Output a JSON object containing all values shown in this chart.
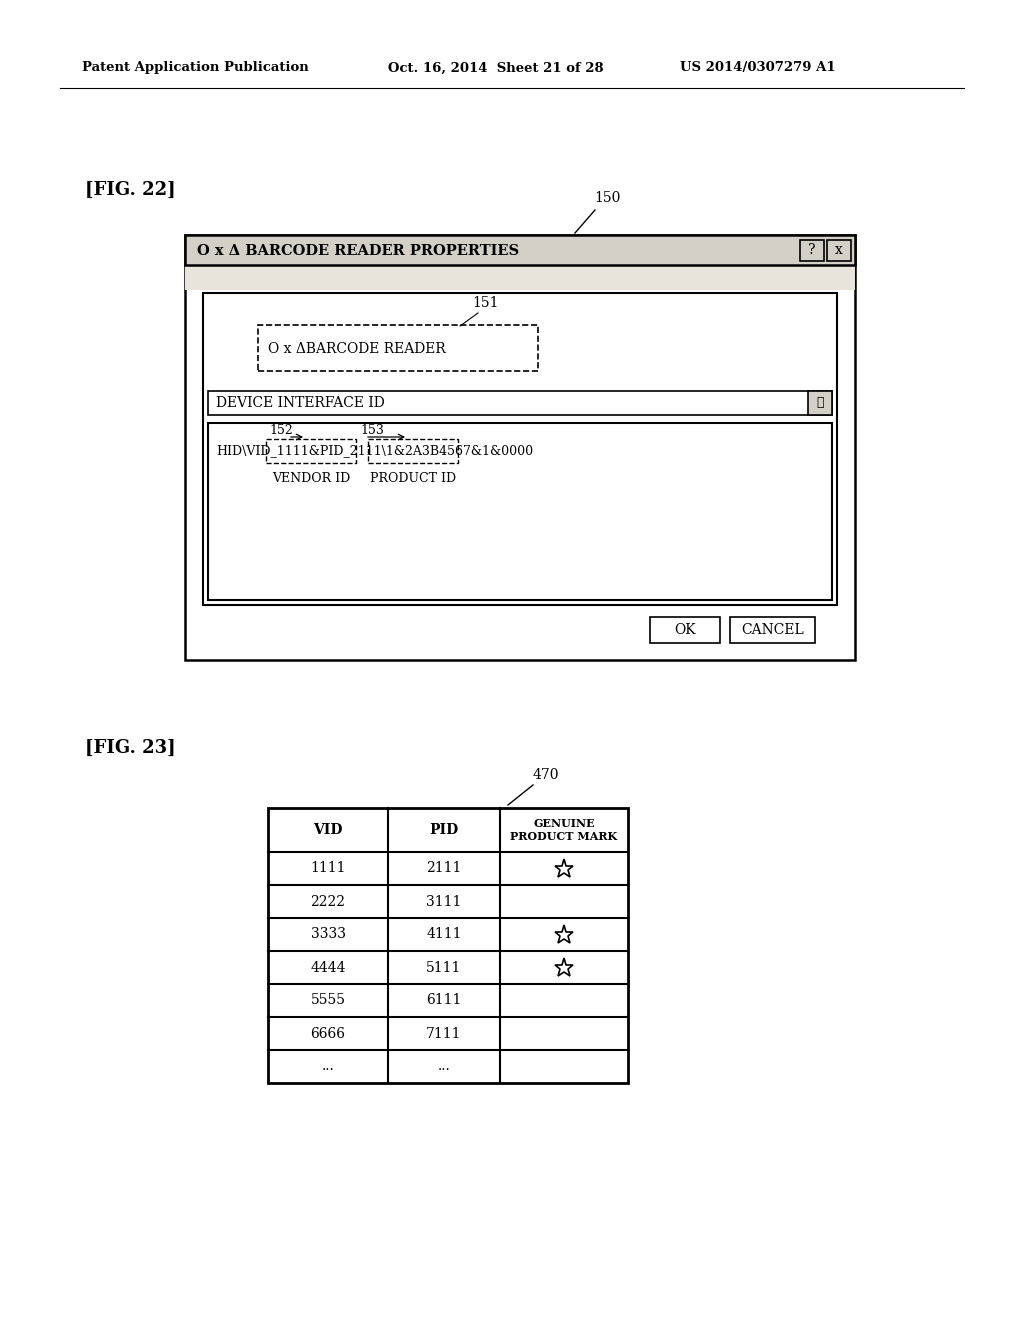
{
  "bg_color": "#ffffff",
  "header_left": "Patent Application Publication",
  "header_mid": "Oct. 16, 2014  Sheet 21 of 28",
  "header_right": "US 2014/0307279 A1",
  "fig22_label": "[FIG. 22]",
  "fig23_label": "[FIG. 23]",
  "label_150": "150",
  "label_151": "151",
  "label_152": "152",
  "label_153": "153",
  "label_470": "470",
  "dialog_title": "O x Δ BARCODE READER PROPERTIES",
  "barcode_reader_text": "O x ΔBARCODE READER",
  "device_interface_id": "DEVICE INTERFACE ID",
  "hid_string": "HID\\VID_1111&PID_2111\\1&2A3B4567&1&0000",
  "vendor_id_label": "VENDOR ID",
  "product_id_label": "PRODUCT ID",
  "ok_button": "OK",
  "cancel_button": "CANCEL",
  "table_col0_header": "VID",
  "table_col1_header": "PID",
  "table_col2_header": "GENUINE\nPRODUCT MARK",
  "table_data": [
    [
      "1111",
      "2111",
      true
    ],
    [
      "2222",
      "3111",
      false
    ],
    [
      "3333",
      "4111",
      true
    ],
    [
      "4444",
      "5111",
      true
    ],
    [
      "5555",
      "6111",
      false
    ],
    [
      "6666",
      "7111",
      false
    ],
    [
      "...",
      "...",
      false
    ]
  ]
}
